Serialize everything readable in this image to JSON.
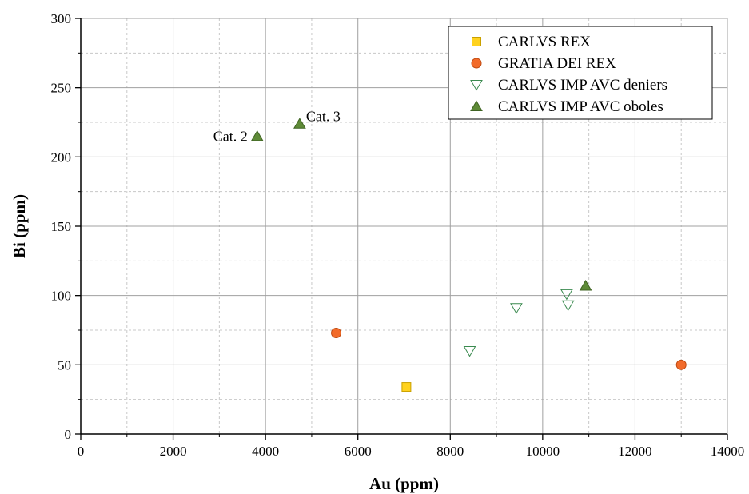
{
  "chart_data": {
    "type": "scatter",
    "xlabel": "Au (ppm)",
    "ylabel": "Bi (ppm)",
    "xlim": [
      0,
      14000
    ],
    "ylim": [
      0,
      300
    ],
    "xticks": [
      0,
      2000,
      4000,
      6000,
      8000,
      10000,
      12000,
      14000
    ],
    "yticks": [
      0,
      50,
      100,
      150,
      200,
      250,
      300
    ],
    "grid": true,
    "legend_position": "top-right",
    "series": [
      {
        "name": "CARLVS REX",
        "marker": "square",
        "color": "#FFD21F",
        "stroke": "#C9A000",
        "points": [
          [
            7050,
            34
          ]
        ]
      },
      {
        "name": "GRATIA DEI REX",
        "marker": "circle",
        "color": "#F26B2A",
        "stroke": "#C04A10",
        "points": [
          [
            5530,
            73
          ],
          [
            13000,
            50
          ]
        ]
      },
      {
        "name": "CARLVS IMP AVC deniers",
        "marker": "triangle-down-open",
        "color": "none",
        "stroke": "#3A8A4F",
        "points": [
          [
            8420,
            60
          ],
          [
            9430,
            91
          ],
          [
            10520,
            101
          ],
          [
            10550,
            93
          ]
        ]
      },
      {
        "name": "CARLVS IMP AVC oboles",
        "marker": "triangle-up",
        "color": "#5E8A37",
        "stroke": "#3F6322",
        "points": [
          [
            3820,
            215
          ],
          [
            4740,
            224
          ],
          [
            10930,
            107
          ]
        ]
      }
    ],
    "annotations": [
      {
        "text": "Cat. 2",
        "x": 3820,
        "y": 215,
        "anchor": "left"
      },
      {
        "text": "Cat. 3",
        "x": 4740,
        "y": 224,
        "anchor": "right"
      }
    ]
  }
}
